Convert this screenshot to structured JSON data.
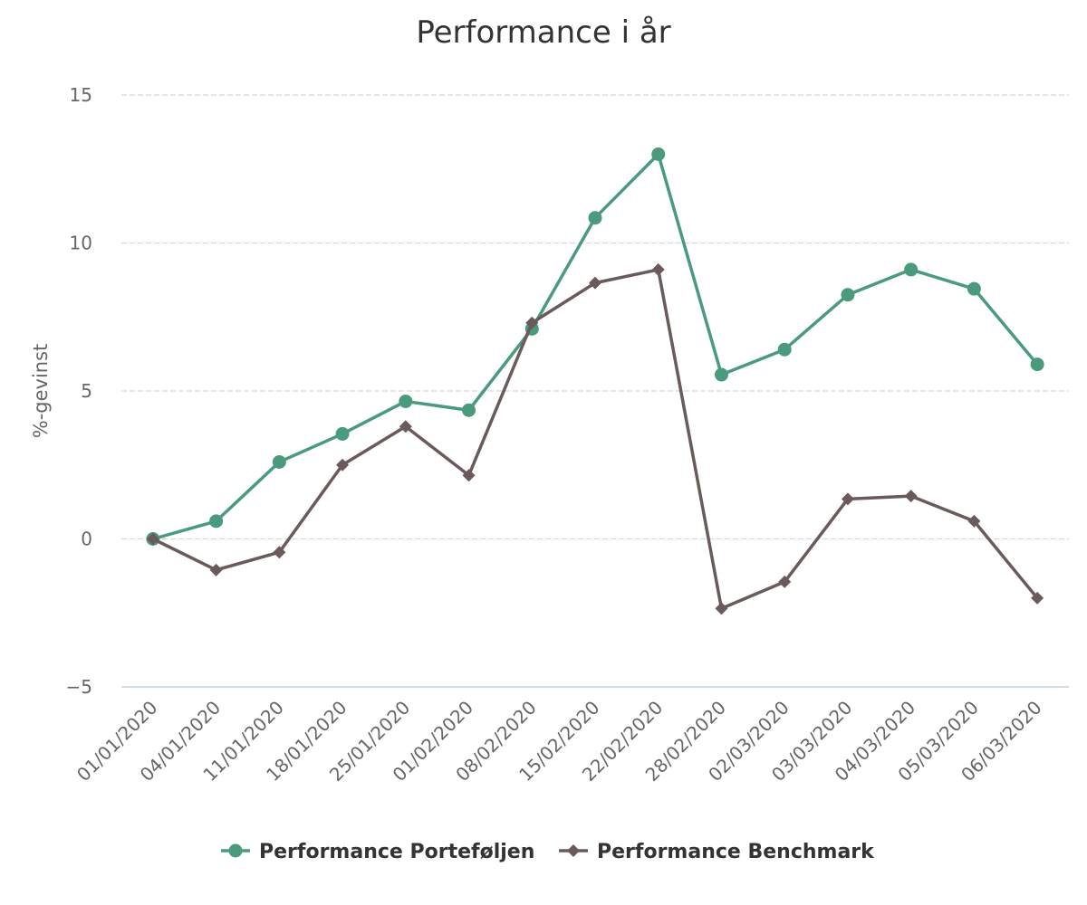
{
  "chart_data": {
    "type": "line",
    "title": "Performance i år",
    "xlabel": "",
    "ylabel": "%-gevinst",
    "ylim": [
      -5,
      15
    ],
    "yticks": [
      15,
      10,
      5,
      0,
      -5
    ],
    "grid": true,
    "legend_position": "bottom",
    "categories": [
      "01/01/2020",
      "04/01/2020",
      "11/01/2020",
      "18/01/2020",
      "25/01/2020",
      "01/02/2020",
      "08/02/2020",
      "15/02/2020",
      "22/02/2020",
      "28/02/2020",
      "02/03/2020",
      "03/03/2020",
      "04/03/2020",
      "05/03/2020",
      "06/03/2020"
    ],
    "series": [
      {
        "name": "Performance Porteføljen",
        "color": "#4a9a7c",
        "marker": "circle",
        "values": [
          0,
          0.6,
          2.6,
          3.55,
          4.65,
          4.35,
          7.1,
          10.85,
          13.0,
          5.55,
          6.4,
          8.25,
          9.1,
          8.45,
          5.9
        ]
      },
      {
        "name": "Performance Benchmark",
        "color": "#6b5a5a",
        "marker": "diamond",
        "values": [
          0,
          -1.05,
          -0.45,
          2.5,
          3.8,
          2.15,
          7.3,
          8.65,
          9.1,
          -2.35,
          -1.45,
          1.35,
          1.45,
          0.6,
          -2.0
        ]
      }
    ]
  }
}
